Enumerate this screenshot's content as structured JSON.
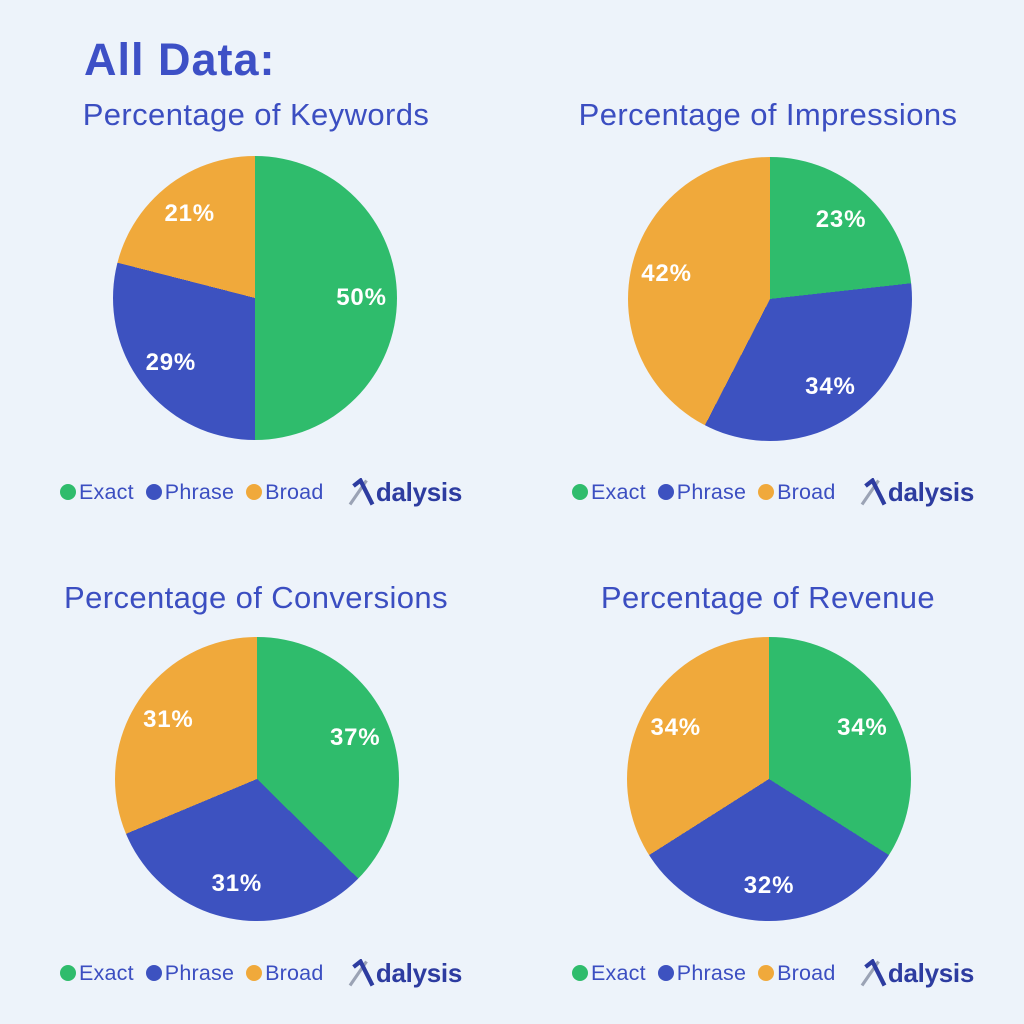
{
  "page": {
    "heading": "All Data:",
    "background": "#EDF3FA"
  },
  "palette": {
    "exact_green": "#2FBC6C",
    "phrase_blue": "#3D52C0",
    "broad_orange": "#F0A93B",
    "heading_blue": "#3D50C6",
    "title_blue": "#3B4EC1",
    "logo_blue": "#2D3CA0",
    "logo_gray": "#9BA3B5",
    "slice_label_white": "#FFFFFF"
  },
  "legend": {
    "items": [
      {
        "name": "Exact",
        "color": "#2FBC6C"
      },
      {
        "name": "Phrase",
        "color": "#3D52C0"
      },
      {
        "name": "Broad",
        "color": "#F0A93B"
      }
    ]
  },
  "logo": {
    "brand": "Adalysis",
    "wordmark_text": "dalysis"
  },
  "chart_data": [
    {
      "type": "pie",
      "title": "Percentage of Keywords",
      "direction": "clockwise",
      "start_angle_deg": 0,
      "slices": [
        {
          "category": "Exact",
          "value": 50,
          "label": "50%",
          "color": "#2FBC6C"
        },
        {
          "category": "Phrase",
          "value": 29,
          "label": "29%",
          "color": "#3D52C0"
        },
        {
          "category": "Broad",
          "value": 21,
          "label": "21%",
          "color": "#F0A93B"
        }
      ]
    },
    {
      "type": "pie",
      "title": "Percentage of Impressions",
      "direction": "clockwise",
      "start_angle_deg": 0,
      "slices": [
        {
          "category": "Exact",
          "value": 23,
          "label": "23%",
          "color": "#2FBC6C"
        },
        {
          "category": "Phrase",
          "value": 34,
          "label": "34%",
          "color": "#3D52C0"
        },
        {
          "category": "Broad",
          "value": 42,
          "label": "42%",
          "color": "#F0A93B"
        }
      ]
    },
    {
      "type": "pie",
      "title": "Percentage of Conversions",
      "direction": "clockwise",
      "start_angle_deg": 0,
      "slices": [
        {
          "category": "Exact",
          "value": 37,
          "label": "37%",
          "color": "#2FBC6C"
        },
        {
          "category": "Phrase",
          "value": 31,
          "label": "31%",
          "color": "#3D52C0"
        },
        {
          "category": "Broad",
          "value": 31,
          "label": "31%",
          "color": "#F0A93B"
        }
      ]
    },
    {
      "type": "pie",
      "title": "Percentage of Revenue",
      "direction": "clockwise",
      "start_angle_deg": 0,
      "slices": [
        {
          "category": "Exact",
          "value": 34,
          "label": "34%",
          "color": "#2FBC6C"
        },
        {
          "category": "Phrase",
          "value": 32,
          "label": "32%",
          "color": "#3D52C0"
        },
        {
          "category": "Broad",
          "value": 34,
          "label": "34%",
          "color": "#F0A93B"
        }
      ]
    }
  ]
}
